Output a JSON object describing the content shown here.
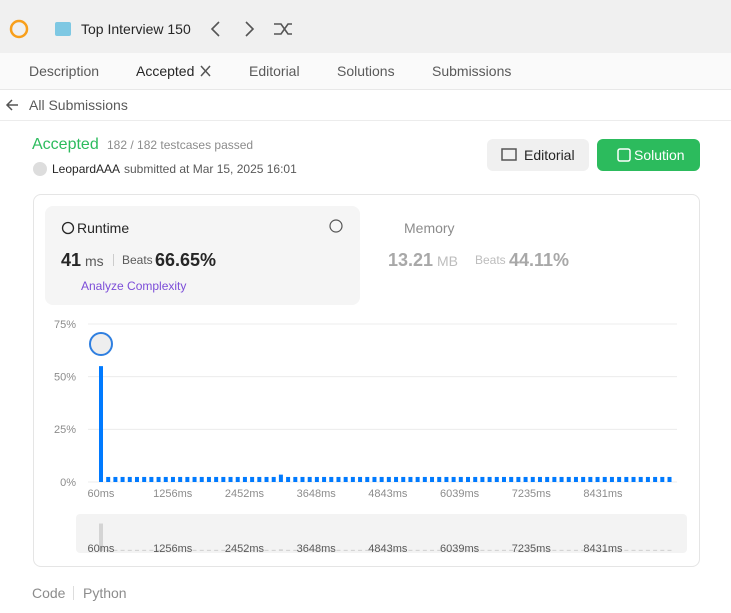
{
  "topbar": {
    "title": "Top Interview 150"
  },
  "tabs": [
    "Description",
    "Accepted",
    "Editorial",
    "Solutions",
    "Submissions"
  ],
  "back": "All Submissions",
  "result": {
    "status": "Accepted",
    "testcases": "182 / 182 testcases passed",
    "user": "LeopardAAA",
    "submitted": "submitted at Mar 15, 2025 16:01"
  },
  "buttons": [
    "Editorial",
    "Solution"
  ],
  "runtime": {
    "label": "Runtime",
    "value": "41",
    "unit": "ms",
    "beats_label": "Beats",
    "beats": "66.65%",
    "analyze": "Analyze Complexity"
  },
  "memory": {
    "label": "Memory",
    "value": "13.21",
    "unit": "MB",
    "beats_label": "Beats",
    "beats": "44.11%"
  },
  "chart_data": {
    "type": "bar",
    "color": "#007aff",
    "x": [
      60,
      180,
      300,
      420,
      540,
      660,
      780,
      900,
      1020,
      1140,
      1260,
      1380,
      1500,
      1620,
      1740,
      1860,
      1980,
      2100,
      2220,
      2340,
      2460,
      2580,
      2700,
      2820,
      2940,
      3060,
      3180,
      3300,
      3420,
      3540,
      3660,
      3780,
      3900,
      4020,
      4140,
      4260,
      4380,
      4500,
      4620,
      4740,
      4860,
      4980,
      5100,
      5220,
      5340,
      5460,
      5580,
      5700,
      5820,
      5940,
      6060,
      6180,
      6300,
      6420,
      6540,
      6660,
      6780,
      6900,
      7020,
      7140,
      7260,
      7380,
      7500,
      7620,
      7740,
      7860,
      7980,
      8100,
      8220,
      8340,
      8460,
      8580,
      8700,
      8820,
      8940,
      9060,
      9180,
      9300,
      9420,
      9540
    ],
    "values": [
      55,
      2.4,
      2.4,
      2.4,
      2.4,
      2.4,
      2.4,
      2.4,
      2.4,
      2.4,
      2.4,
      2.4,
      2.4,
      2.4,
      2.4,
      2.4,
      2.4,
      2.4,
      2.4,
      2.4,
      2.4,
      2.4,
      2.4,
      2.4,
      2.4,
      3.5,
      2.4,
      2.4,
      2.4,
      2.4,
      2.4,
      2.4,
      2.4,
      2.4,
      2.4,
      2.4,
      2.4,
      2.4,
      2.4,
      2.4,
      2.4,
      2.4,
      2.4,
      2.4,
      2.4,
      2.4,
      2.4,
      2.4,
      2.4,
      2.4,
      2.4,
      2.4,
      2.4,
      2.4,
      2.4,
      2.4,
      2.4,
      2.4,
      2.4,
      2.4,
      2.4,
      2.4,
      2.4,
      2.4,
      2.4,
      2.4,
      2.4,
      2.4,
      2.4,
      2.4,
      2.4,
      2.4,
      2.4,
      2.4,
      2.4,
      2.4,
      2.4,
      2.4,
      2.4,
      2.4
    ],
    "xlim": [
      -707,
      9665
    ],
    "xticks": [
      {
        "value": 60,
        "label": "60ms"
      },
      {
        "value": 1256,
        "label": "1256ms"
      },
      {
        "value": 2452,
        "label": "2452ms"
      },
      {
        "value": 3648,
        "label": "3648ms"
      },
      {
        "value": 4843,
        "label": "4843ms"
      },
      {
        "value": 6039,
        "label": "6039ms"
      },
      {
        "value": 7235,
        "label": "7235ms"
      },
      {
        "value": 8431,
        "label": "8431ms"
      }
    ],
    "ylim": [
      0,
      75
    ],
    "yticks": [
      {
        "value": 0,
        "label": "0%"
      },
      {
        "value": 25,
        "label": "25%"
      },
      {
        "value": 50,
        "label": "50%"
      },
      {
        "value": 75,
        "label": "75%"
      }
    ],
    "grid": true
  },
  "code": {
    "label": "Code",
    "language": "Python"
  }
}
